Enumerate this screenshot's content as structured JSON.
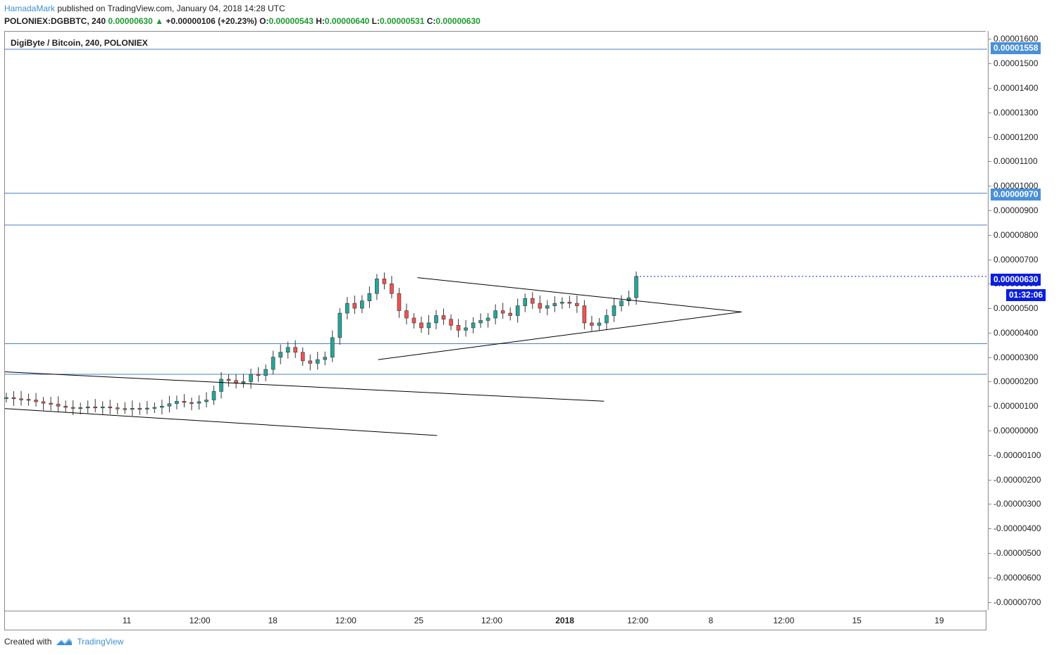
{
  "header": {
    "author": "HamadaMark",
    "published": " published on TradingView.com, January 04, 2018 14:28 UTC",
    "symbol": "POLONIEX:DGBBTC, 240",
    "price": "0.00000630",
    "change": "+0.00000106 (+20.23%)",
    "o_label": "O:",
    "o_value": "0.00000543",
    "h_label": "H:",
    "h_value": "0.00000640",
    "l_label": "L:",
    "l_value": "0.00000531",
    "c_label": "C:",
    "c_value": "0.00000630"
  },
  "pane_title": "DigiByte / Bitcoin, 240, POLONIEX",
  "footer": {
    "created_with": "Created with",
    "brand": "TradingView"
  },
  "badges": {
    "level_top": "0.00001558",
    "level_mid": "0.00000970",
    "last_price": "0.00000630",
    "countdown": "01:32:06"
  },
  "colors": {
    "up": "#26a69a",
    "down": "#ef5350",
    "hline": "#4a7fc1",
    "trend": "#000000",
    "accent": "#3b8fd4"
  },
  "chart_data": {
    "type": "candlestick",
    "title": "DigiByte / Bitcoin, 240, POLONIEX",
    "y_ticks": [
      "0.00001600",
      "0.00001500",
      "0.00001400",
      "0.00001300",
      "0.00001200",
      "0.00001100",
      "0.00001000",
      "0.00000900",
      "0.00000800",
      "0.00000700",
      "0.00000600",
      "0.00000500",
      "0.00000400",
      "0.00000300",
      "0.00000200",
      "0.00000100",
      "0.00000000",
      "-0.00000100",
      "-0.00000200",
      "-0.00000300",
      "-0.00000400",
      "-0.00000500",
      "-0.00000600",
      "-0.00000700"
    ],
    "x_ticks": [
      "11",
      "12:00",
      "18",
      "12:00",
      "25",
      "12:00",
      "2018",
      "12:00",
      "8",
      "12:00",
      "15",
      "19"
    ],
    "x_ticks_bold": [
      "2018"
    ],
    "ylim": [
      -7.3e-06,
      1.63e-05
    ],
    "horizontal_lines": [
      1.558e-05,
      9.7e-06,
      8.4e-06,
      3.55e-06,
      2.3e-06
    ],
    "trendlines": [
      {
        "from": [
          0.0,
          2.4e-06
        ],
        "to": [
          0.61,
          1.2e-06
        ]
      },
      {
        "from": [
          0.0,
          9e-07
        ],
        "to": [
          0.44,
          -2e-07
        ]
      },
      {
        "from": [
          0.42,
          6.25e-06
        ],
        "to": [
          0.75,
          4.85e-06
        ]
      },
      {
        "from": [
          0.38,
          2.9e-06
        ],
        "to": [
          0.75,
          4.85e-06
        ]
      }
    ],
    "candles_close": [
      1.35e-06,
      1.3e-06,
      1.28e-06,
      1.25e-06,
      1.18e-06,
      1.12e-06,
      1.08e-06,
      1e-06,
      9.5e-07,
      9.2e-07,
      9.4e-07,
      9.7e-07,
      9.5e-07,
      9.7e-07,
      9.3e-07,
      9e-07,
      8.9e-07,
      9.1e-07,
      9e-07,
      9.2e-07,
      9.5e-07,
      1e-06,
      1.1e-06,
      1.2e-06,
      1.15e-06,
      1.12e-06,
      1.18e-06,
      1.25e-06,
      1.6e-06,
      2.1e-06,
      2.05e-06,
      1.95e-06,
      2e-06,
      2.3e-06,
      2.25e-06,
      2.5e-06,
      3e-06,
      3.2e-06,
      3.4e-06,
      3.2e-06,
      2.85e-06,
      2.75e-06,
      2.9e-06,
      3e-06,
      3.8e-06,
      4.8e-06,
      5.2e-06,
      5e-06,
      5.3e-06,
      5.6e-06,
      6.2e-06,
      6e-06,
      5.6e-06,
      4.9e-06,
      4.6e-06,
      4.4e-06,
      4.2e-06,
      4.4e-06,
      4.7e-06,
      4.55e-06,
      4.3e-06,
      4.1e-06,
      4.2e-06,
      4.4e-06,
      4.5e-06,
      4.6e-06,
      4.9e-06,
      4.8e-06,
      4.7e-06,
      5.1e-06,
      5.4e-06,
      5.2e-06,
      5e-06,
      5.1e-06,
      5.2e-06,
      5.25e-06,
      5.2e-06,
      5.1e-06,
      4.4e-06,
      4.3e-06,
      4.4e-06,
      4.7e-06,
      5.1e-06,
      5.3e-06,
      5.43e-06,
      6.3e-06
    ],
    "last_price": 6.3e-06
  }
}
